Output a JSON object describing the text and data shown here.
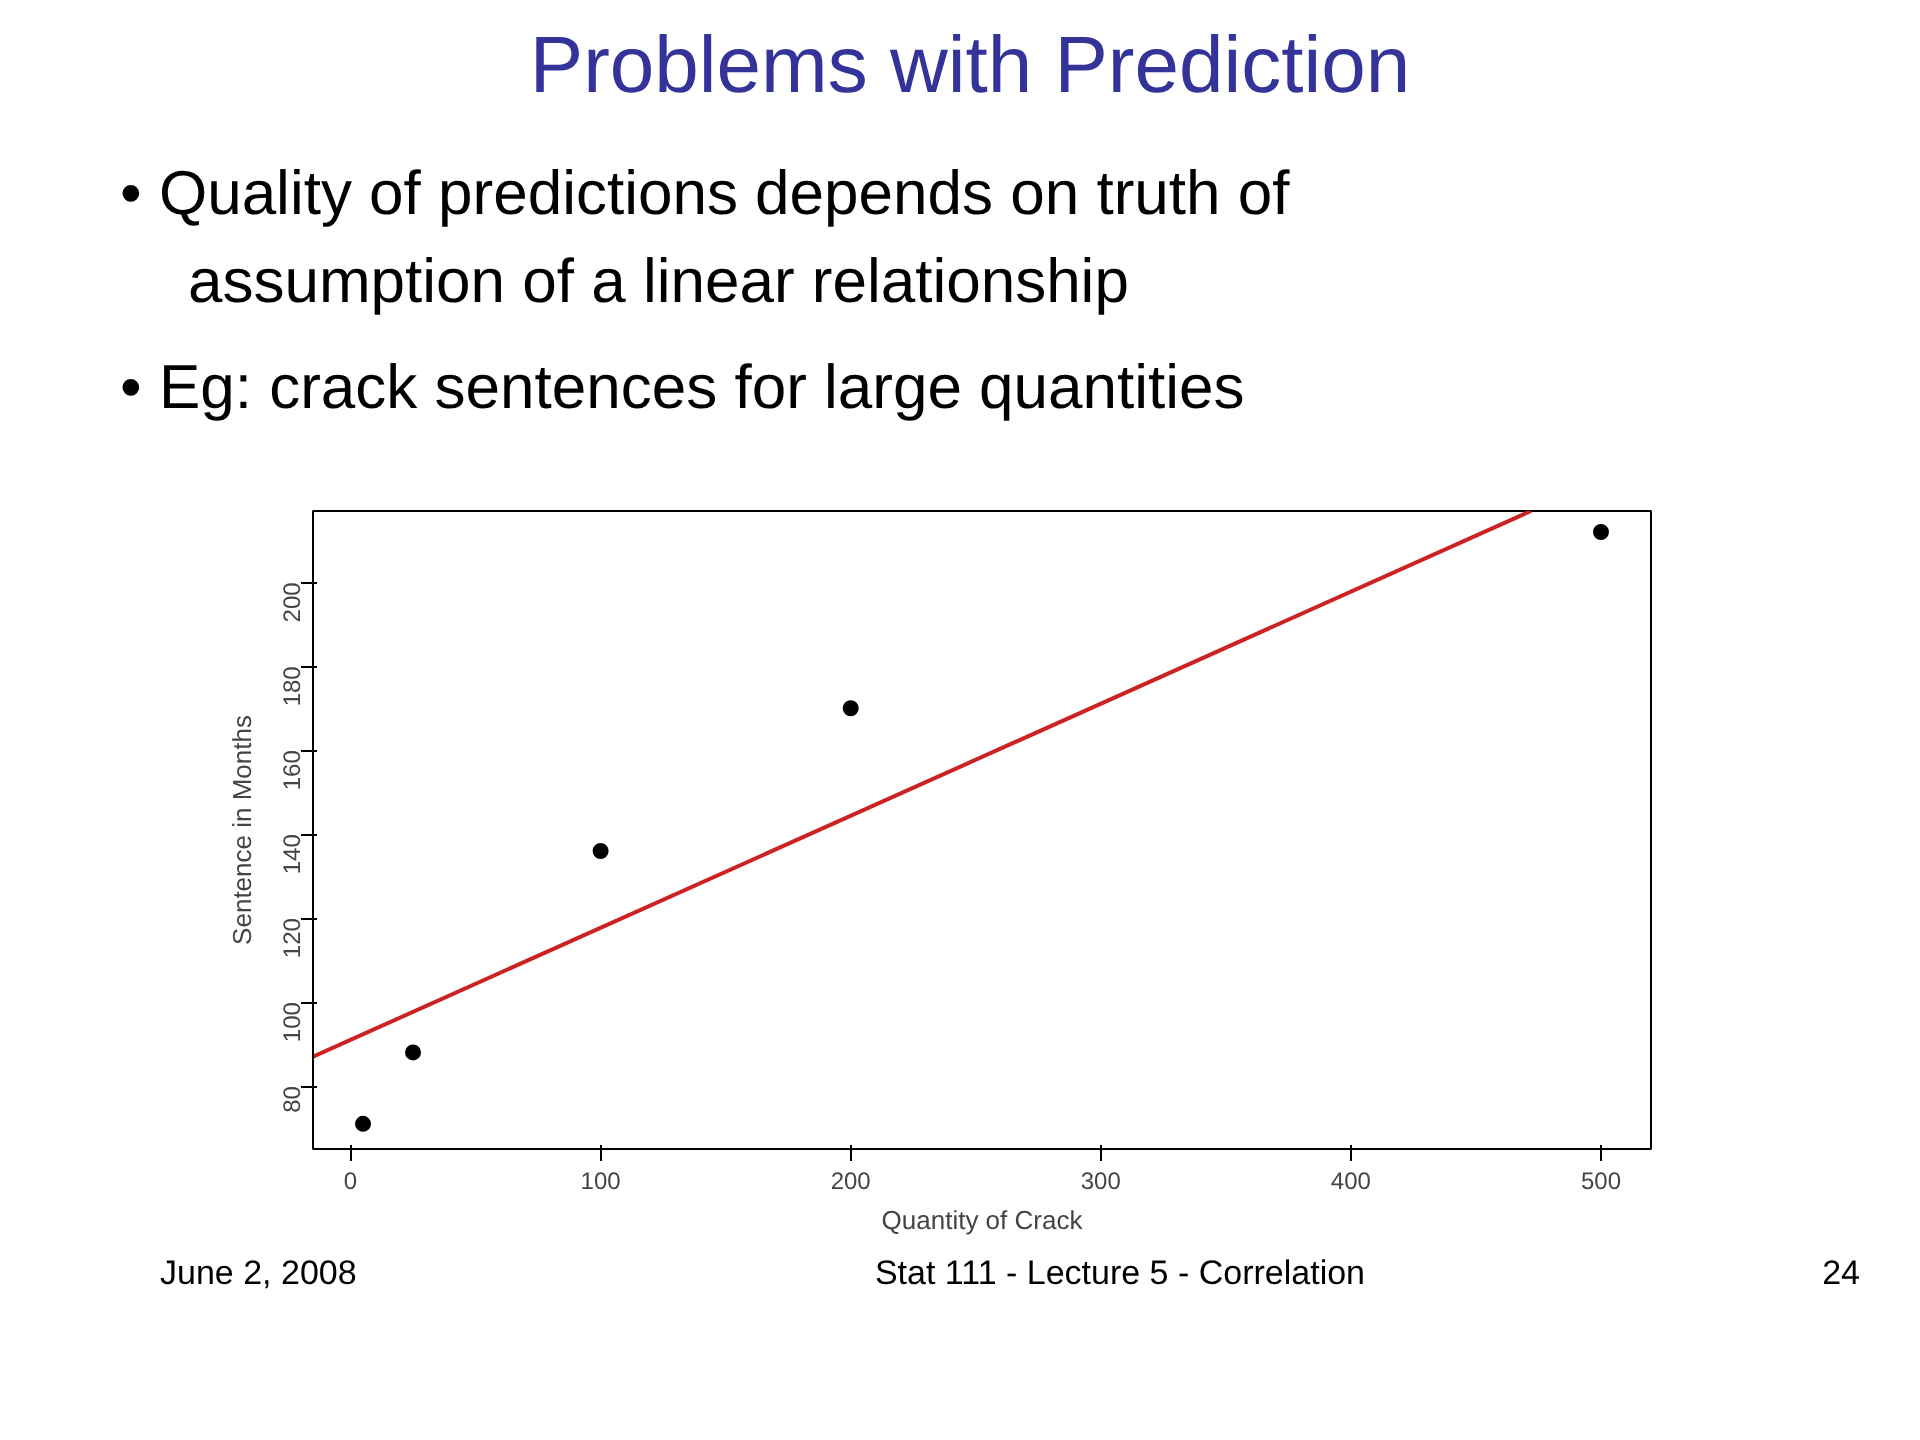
{
  "chart_data": {
    "type": "scatter",
    "title": "Problems with Prediction",
    "annotations": [
      "• Quality of predictions depends on truth of assumption of a linear relationship",
      "• Eg: crack sentences for large quantities",
      "June 2, 2008",
      "Stat 111 - Lecture 5 - Correlation",
      "24"
    ],
    "xlabel": "Quantity of Crack",
    "ylabel": "Sentence in Months",
    "xlim": [
      -15,
      520
    ],
    "ylim": [
      65,
      217
    ],
    "xticks": [
      0,
      100,
      200,
      300,
      400,
      500
    ],
    "yticks": [
      80,
      100,
      120,
      140,
      160,
      180,
      200
    ],
    "grid": false,
    "series": [
      {
        "marker": "circle",
        "color": "#000000",
        "x": [
          5,
          25,
          100,
          200,
          500
        ],
        "values": [
          71,
          88,
          136,
          170,
          212
        ]
      },
      {
        "type": "line",
        "color": "#cc2222",
        "x": [
          -15,
          472
        ],
        "values": [
          87,
          217
        ],
        "line_style": "solid"
      }
    ]
  }
}
